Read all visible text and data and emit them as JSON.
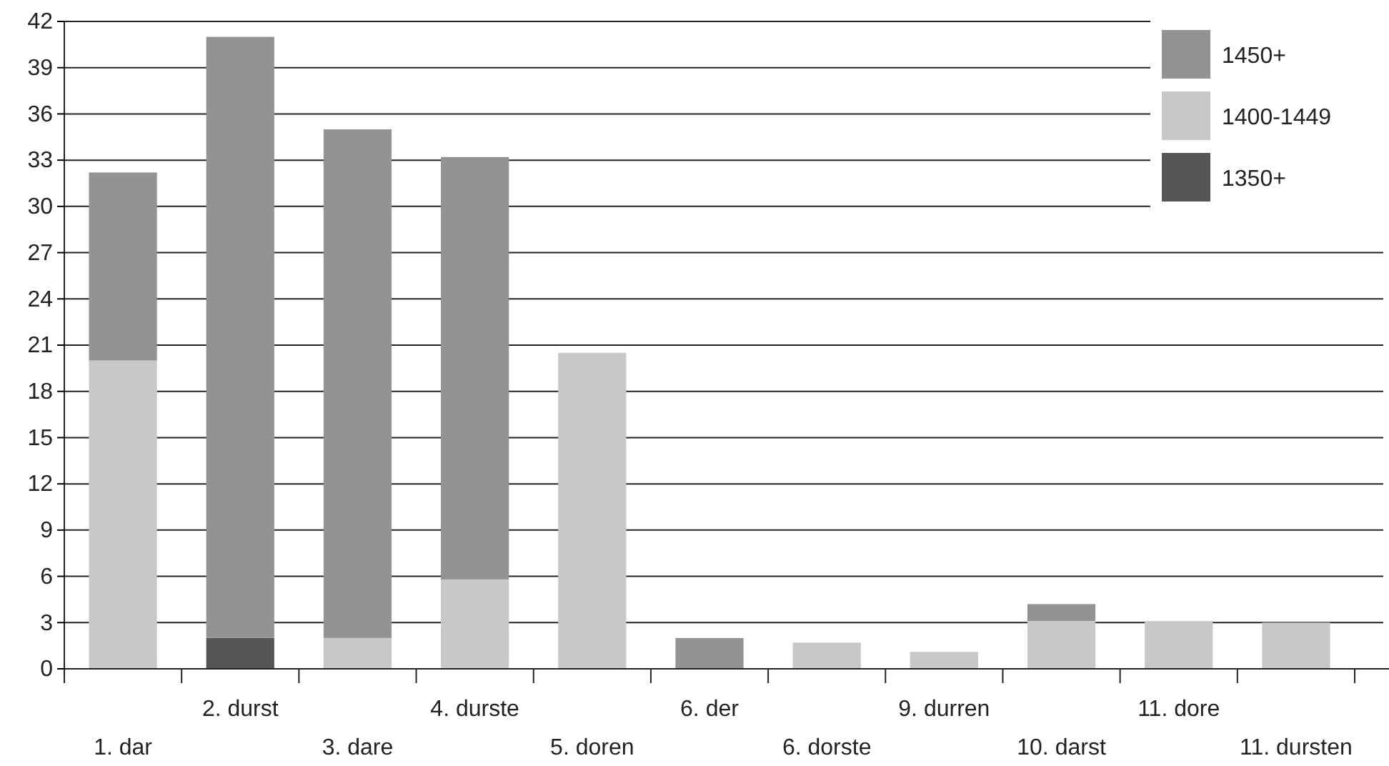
{
  "chart_data": {
    "type": "bar",
    "stacked": true,
    "categories": [
      "1. dar",
      "2. durst",
      "3. dare",
      "4. durste",
      "5. doren",
      "6. der",
      "6. dorste",
      "9. durren",
      "10. darst",
      "11. dore",
      "11. dursten"
    ],
    "series": [
      {
        "name": "1350+",
        "color": "#555555",
        "values": [
          null,
          2,
          null,
          null,
          null,
          null,
          null,
          null,
          null,
          null,
          null
        ]
      },
      {
        "name": "1400-1449",
        "color": "#c8c8c8",
        "values": [
          20,
          null,
          2,
          5.8,
          20.5,
          null,
          1.7,
          1.1,
          3.1,
          3.1,
          3
        ]
      },
      {
        "name": "1450+",
        "color": "#939393",
        "values": [
          12.2,
          39,
          33,
          27.4,
          null,
          2,
          null,
          null,
          1.1,
          null,
          null
        ]
      }
    ],
    "ylim": [
      0,
      42
    ],
    "yticks": [
      0,
      3,
      6,
      9,
      12,
      15,
      18,
      21,
      24,
      27,
      30,
      33,
      36,
      39,
      42
    ],
    "grid": "y",
    "legend": "top right"
  }
}
